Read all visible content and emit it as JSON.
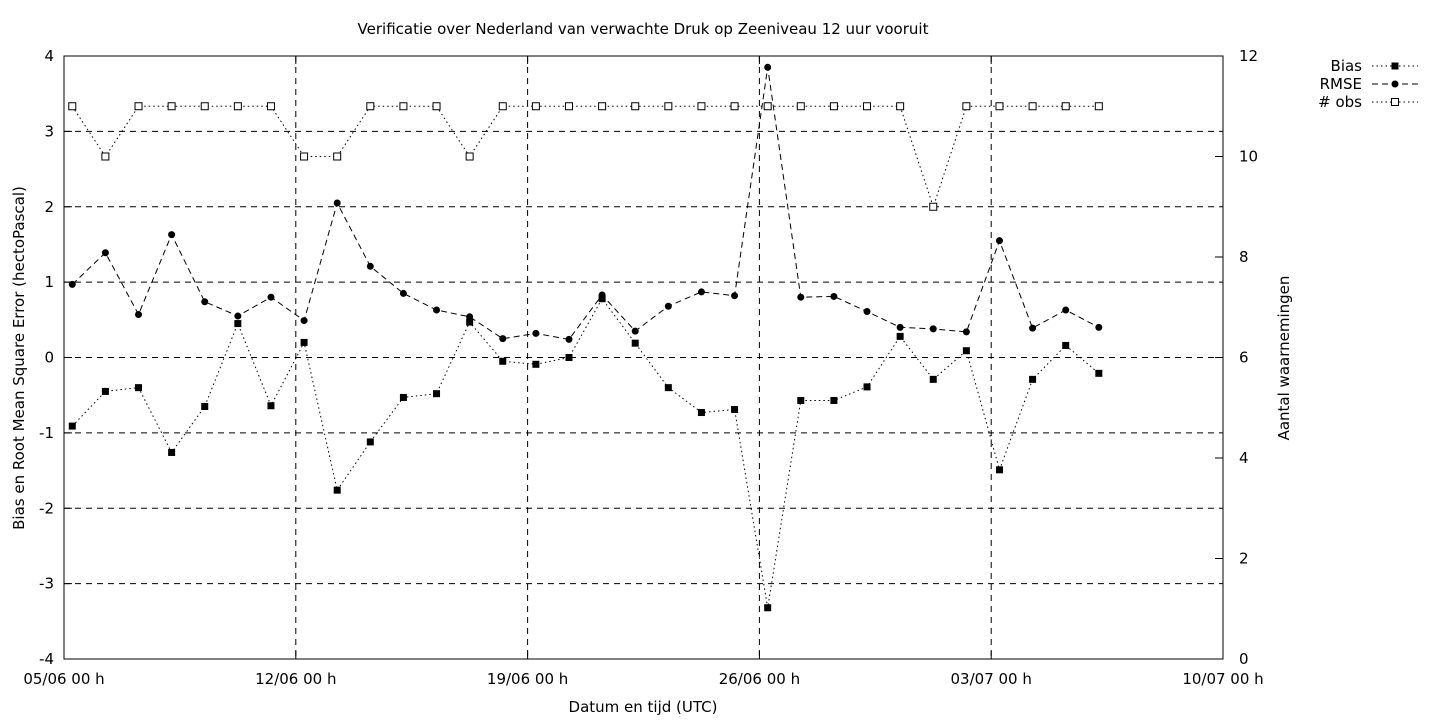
{
  "chart_data": {
    "type": "line",
    "title": "Verificatie over Nederland van verwachte Druk op Zeeniveau 12 uur vooruit",
    "xlabel": "Datum en tijd (UTC)",
    "ylabel": "Bias en Root Mean Square Error (hectoPascal)",
    "y2label": "Aantal waarnemingen",
    "x_unit": "days from 05/06 00 h",
    "xlim": [
      0,
      35
    ],
    "ylim": [
      -4,
      4
    ],
    "y2lim": [
      0,
      12
    ],
    "x_ticks": [
      {
        "x": 0,
        "label": "05/06 00 h"
      },
      {
        "x": 7,
        "label": "12/06 00 h"
      },
      {
        "x": 14,
        "label": "19/06 00 h"
      },
      {
        "x": 21,
        "label": "26/06 00 h"
      },
      {
        "x": 28,
        "label": "03/07 00 h"
      },
      {
        "x": 35,
        "label": "10/07 00 h"
      }
    ],
    "y_ticks": [
      "-4",
      "-3",
      "-2",
      "-1",
      "0",
      "1",
      "2",
      "3",
      "4"
    ],
    "y2_ticks": [
      "0",
      "2",
      "4",
      "6",
      "8",
      "10",
      "12"
    ],
    "grid": true,
    "legend_position": "top-right, outside plot",
    "x": [
      0.25,
      1.25,
      2.25,
      3.25,
      4.25,
      5.25,
      6.25,
      7.25,
      8.25,
      9.25,
      10.25,
      11.25,
      12.25,
      13.25,
      14.25,
      15.25,
      16.25,
      17.25,
      18.25,
      19.25,
      20.25,
      21.25,
      22.25,
      23.25,
      24.25,
      25.25,
      26.25,
      27.25,
      28.25,
      29.25,
      30.25,
      31.25
    ],
    "series": [
      {
        "name": "Bias",
        "axis": "left",
        "line": "dotted",
        "marker": "filled-square",
        "values": [
          -0.91,
          -0.45,
          -0.4,
          -1.26,
          -0.65,
          0.45,
          -0.64,
          0.2,
          -1.76,
          -1.12,
          -0.53,
          -0.48,
          0.47,
          -0.05,
          -0.09,
          0.0,
          0.78,
          0.19,
          -0.4,
          -0.73,
          -0.69,
          -3.32,
          -0.57,
          -0.57,
          -0.39,
          0.28,
          -0.29,
          0.09,
          -1.49,
          -0.29,
          0.16,
          -0.21
        ]
      },
      {
        "name": "RMSE",
        "axis": "left",
        "line": "dashed",
        "marker": "filled-circle",
        "values": [
          0.97,
          1.39,
          0.57,
          1.63,
          0.74,
          0.55,
          0.8,
          0.49,
          2.05,
          1.21,
          0.85,
          0.63,
          0.54,
          0.25,
          0.32,
          0.24,
          0.83,
          0.35,
          0.68,
          0.87,
          0.82,
          3.85,
          0.8,
          0.81,
          0.61,
          0.4,
          0.38,
          0.34,
          1.55,
          0.39,
          0.63,
          0.4
        ]
      },
      {
        "name": "# obs",
        "axis": "right",
        "line": "dotted",
        "marker": "open-square",
        "values": [
          11,
          10,
          11,
          11,
          11,
          11,
          11,
          10,
          10,
          11,
          11,
          11,
          10,
          11,
          11,
          11,
          11,
          11,
          11,
          11,
          11,
          11,
          11,
          11,
          11,
          11,
          9,
          11,
          11,
          11,
          11,
          11
        ]
      }
    ]
  }
}
